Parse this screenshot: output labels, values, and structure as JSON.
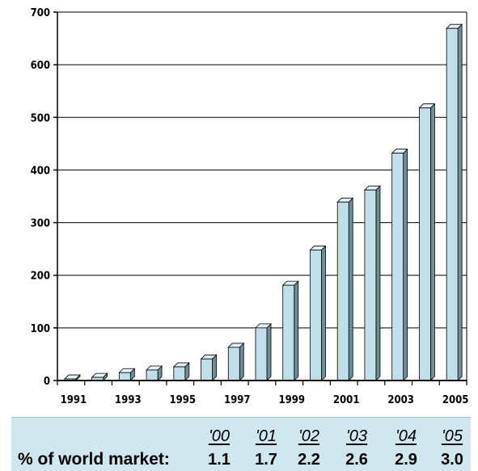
{
  "chart_data": {
    "type": "bar",
    "x": [
      1991,
      1992,
      1993,
      1994,
      1995,
      1996,
      1997,
      1998,
      1999,
      2000,
      2001,
      2002,
      2003,
      2004,
      2005
    ],
    "values": [
      3,
      6,
      15,
      20,
      26,
      41,
      63,
      100,
      181,
      248,
      339,
      362,
      432,
      518,
      669
    ],
    "x_tick_labels": [
      "1991",
      "1993",
      "1995",
      "1997",
      "1999",
      "2001",
      "2003",
      "2005"
    ],
    "y_ticks": [
      0,
      100,
      200,
      300,
      400,
      500,
      600,
      700
    ],
    "ylim": [
      0,
      700
    ],
    "grid": "horizontal",
    "bar_color": "#bfe0e8",
    "title": "",
    "xlabel": "",
    "ylabel": ""
  },
  "market_share": {
    "label": "% of world market:",
    "years": [
      "'00",
      "'01",
      "'02",
      "'03",
      "'04",
      "'05"
    ],
    "values": [
      "1.1",
      "1.7",
      "2.2",
      "2.6",
      "2.9",
      "3.0"
    ],
    "background": "#cfe7ee"
  }
}
